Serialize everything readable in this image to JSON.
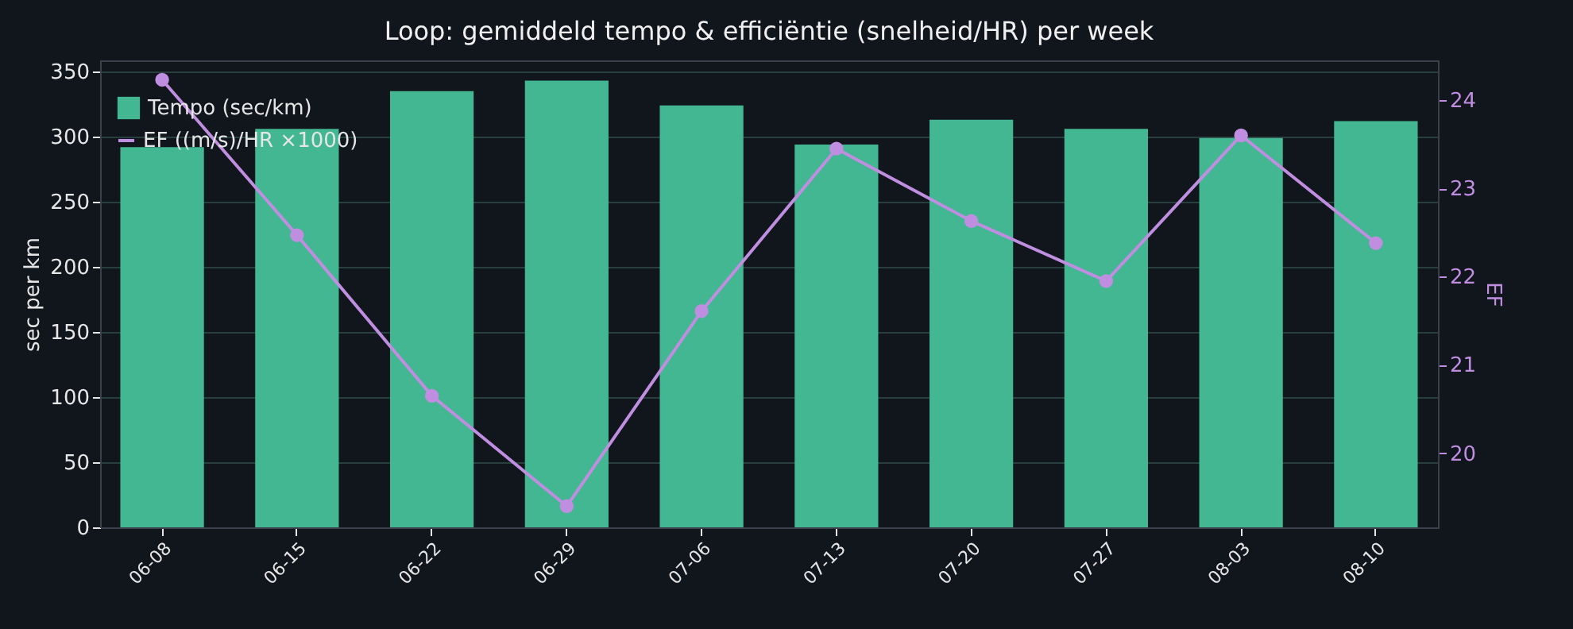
{
  "chart_data": {
    "type": "bar",
    "title": "Loop: gemiddeld tempo & efficiëntie (snelheid/HR) per week",
    "categories": [
      "06-08",
      "06-15",
      "06-22",
      "06-29",
      "07-06",
      "07-13",
      "07-20",
      "07-27",
      "08-03",
      "08-10"
    ],
    "series": [
      {
        "name": "Tempo (sec/km)",
        "color": "#43b692",
        "values": [
          292,
          306,
          335,
          343,
          324,
          294,
          313,
          306,
          299,
          312
        ]
      },
      {
        "name": "EF ((m/s)/HR ×1000)",
        "type": "line",
        "axis": "y2",
        "color": "#c08ee0",
        "marker": "circle",
        "values": [
          24.23,
          22.47,
          20.65,
          19.4,
          21.61,
          23.45,
          22.63,
          21.95,
          23.6,
          22.38
        ]
      }
    ],
    "ylabel": "sec per km",
    "y2label": "EF",
    "ylim": [
      0,
      358.6
    ],
    "yticks": [
      0,
      50,
      100,
      150,
      200,
      250,
      300,
      350
    ],
    "y2lim": [
      19.16,
      24.45
    ],
    "y2ticks": [
      20,
      21,
      22,
      23,
      24
    ],
    "grid": "y",
    "legend": "top left"
  }
}
